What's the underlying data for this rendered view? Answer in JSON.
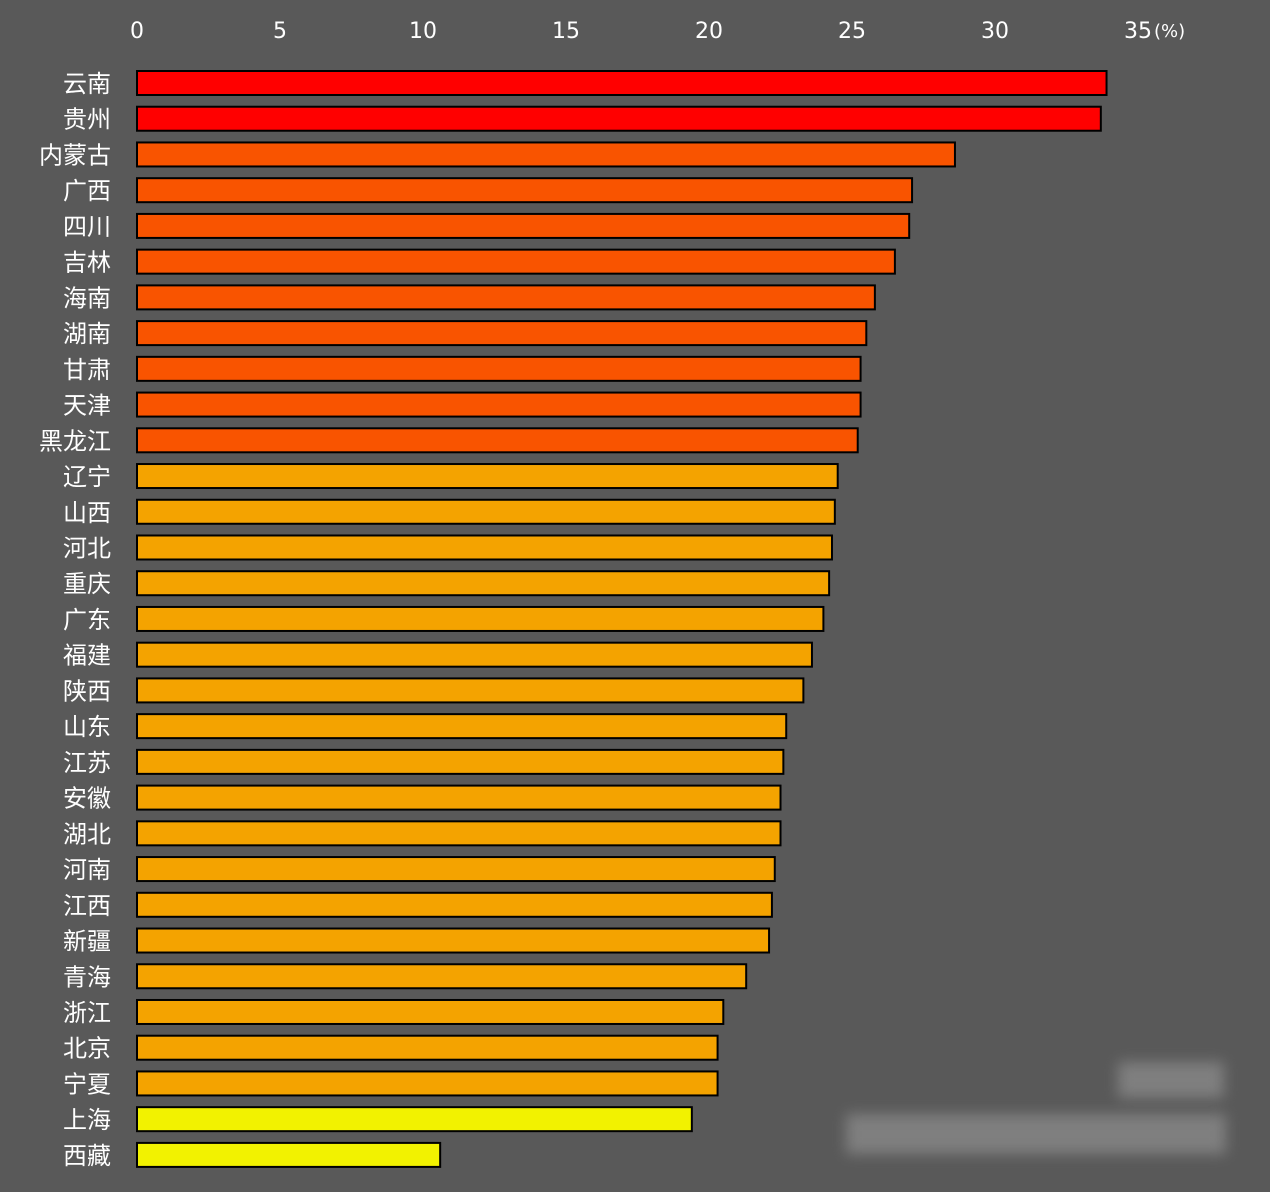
{
  "chart_data": {
    "type": "bar",
    "orientation": "horizontal",
    "title": "",
    "xlabel": "",
    "ylabel": "",
    "unit": "(%)",
    "xlim": [
      0,
      35
    ],
    "xticks": [
      0,
      5,
      10,
      15,
      20,
      25,
      30,
      35
    ],
    "grid": false,
    "categories": [
      "云南",
      "贵州",
      "内蒙古",
      "广西",
      "四川",
      "吉林",
      "海南",
      "湖南",
      "甘肃",
      "天津",
      "黑龙江",
      "辽宁",
      "山西",
      "河北",
      "重庆",
      "广东",
      "福建",
      "陕西",
      "山东",
      "江苏",
      "安徽",
      "湖北",
      "河南",
      "江西",
      "新疆",
      "青海",
      "浙江",
      "北京",
      "宁夏",
      "上海",
      "西藏"
    ],
    "values": [
      33.9,
      33.7,
      28.6,
      27.1,
      27.0,
      26.5,
      25.8,
      25.5,
      25.3,
      25.3,
      25.2,
      24.5,
      24.4,
      24.3,
      24.2,
      24.0,
      23.6,
      23.3,
      22.7,
      22.6,
      22.5,
      22.5,
      22.3,
      22.2,
      22.1,
      21.3,
      20.5,
      20.3,
      20.3,
      19.4,
      10.6
    ],
    "colors": {
      "red": "#ff0000",
      "orange_red": "#f95400",
      "orange": "#f4a300",
      "yellow": "#f2f200"
    },
    "bar_colors": [
      "red",
      "red",
      "orange_red",
      "orange_red",
      "orange_red",
      "orange_red",
      "orange_red",
      "orange_red",
      "orange_red",
      "orange_red",
      "orange_red",
      "orange",
      "orange",
      "orange",
      "orange",
      "orange",
      "orange",
      "orange",
      "orange",
      "orange",
      "orange",
      "orange",
      "orange",
      "orange",
      "orange",
      "orange",
      "orange",
      "orange",
      "orange",
      "yellow",
      "yellow"
    ],
    "background": "#595959"
  }
}
